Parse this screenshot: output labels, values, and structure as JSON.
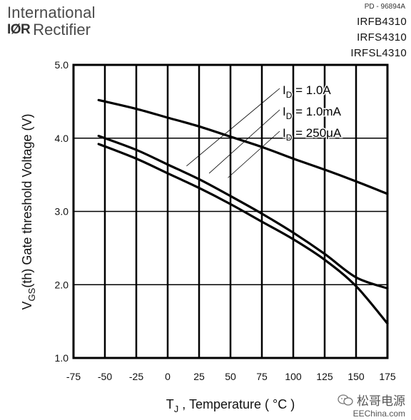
{
  "brand": {
    "line1": "International",
    "logo": "IØR",
    "line2": "Rectifier"
  },
  "doc_id": "PD - 96894A",
  "parts": [
    "IRFB4310",
    "IRFS4310",
    "IRFSL4310"
  ],
  "watermark": {
    "name": "松哥电源",
    "site": "EEChina.com",
    "icon": "wechat-icon"
  },
  "chart_data": {
    "type": "line",
    "title": "",
    "xlabel": {
      "main": "T",
      "sub": "J",
      "rest": " , Temperature ( °C )"
    },
    "ylabel": {
      "main": "V",
      "sub": "GS",
      "rest": "(th) Gate threshold Voltage (V)"
    },
    "xlim": [
      -75,
      175
    ],
    "ylim": [
      1.0,
      5.0
    ],
    "x_ticks": [
      -75,
      -50,
      -25,
      0,
      25,
      50,
      75,
      100,
      125,
      150,
      175
    ],
    "y_ticks": [
      1.0,
      2.0,
      3.0,
      4.0,
      5.0
    ],
    "y_tick_labels": [
      "1.0",
      "2.0",
      "3.0",
      "4.0",
      "5.0"
    ],
    "grid": true,
    "series": [
      {
        "name": "I_D = 1.0A",
        "label_main": "I",
        "label_sub": "D",
        "label_rest": " = 1.0A",
        "x": [
          -55,
          -25,
          0,
          25,
          50,
          75,
          100,
          125,
          150,
          175
        ],
        "y": [
          4.52,
          4.4,
          4.28,
          4.16,
          4.02,
          3.88,
          3.72,
          3.57,
          3.41,
          3.24
        ],
        "leader_from": [
          15,
          3.62
        ]
      },
      {
        "name": "I_D = 1.0mA",
        "label_main": "I",
        "label_sub": "D",
        "label_rest": " = 1.0mA",
        "x": [
          -55,
          -25,
          0,
          25,
          50,
          75,
          100,
          125,
          150,
          175
        ],
        "y": [
          4.03,
          3.84,
          3.64,
          3.44,
          3.21,
          2.97,
          2.71,
          2.42,
          2.1,
          1.95
        ],
        "leader_from": [
          33,
          3.52
        ]
      },
      {
        "name": "I_D = 250μA",
        "label_main": "I",
        "label_sub": "D",
        "label_rest": " = 250μA",
        "x": [
          -55,
          -25,
          0,
          25,
          50,
          75,
          100,
          125,
          150,
          175
        ],
        "y": [
          3.92,
          3.72,
          3.52,
          3.32,
          3.1,
          2.86,
          2.62,
          2.34,
          1.98,
          1.47
        ],
        "leader_from": [
          48,
          3.46
        ]
      }
    ]
  }
}
